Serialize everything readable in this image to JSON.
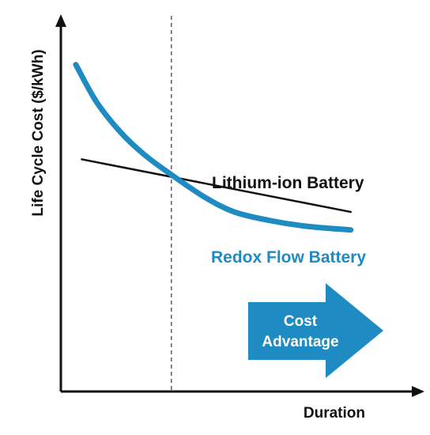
{
  "chart_data": {
    "type": "line",
    "xlabel": "Duration",
    "ylabel": "Life Cycle Cost ($/kWh)",
    "xlim": [
      0,
      1
    ],
    "ylim": [
      0,
      1
    ],
    "grid": false,
    "crossover_marker": {
      "x": 0.37,
      "style": "dashed"
    },
    "series": [
      {
        "name": "Lithium-ion Battery",
        "color": "#111111",
        "x": [
          0.07,
          0.97
        ],
        "y": [
          0.618,
          0.478
        ]
      },
      {
        "name": "Redox Flow Battery",
        "color": "#1e8bc3",
        "x": [
          0.05,
          0.12,
          0.2,
          0.28,
          0.37,
          0.48,
          0.58,
          0.7,
          0.82,
          0.97
        ],
        "y": [
          0.87,
          0.77,
          0.69,
          0.63,
          0.577,
          0.518,
          0.478,
          0.455,
          0.44,
          0.43
        ]
      }
    ],
    "annotations": [
      {
        "text_lines": [
          "Cost",
          "Advantage"
        ],
        "shape": "right-arrow",
        "color": "#1e8bc3",
        "text_color": "#ffffff"
      }
    ]
  }
}
